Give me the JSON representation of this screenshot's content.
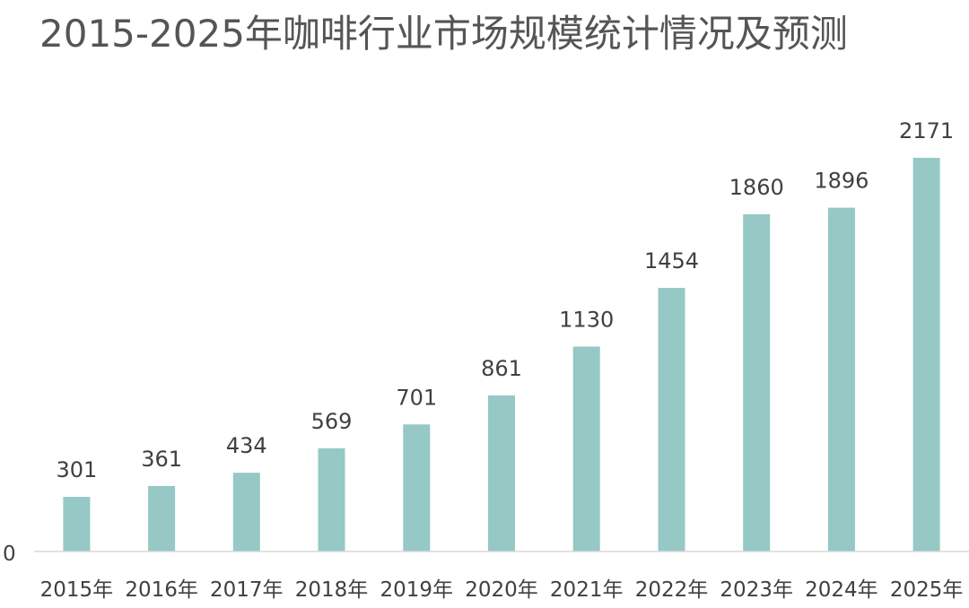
{
  "chart_data": {
    "type": "bar",
    "title": "2015-2025年咖啡行业市场规模统计情况及预测",
    "categories": [
      "2015年",
      "2016年",
      "2017年",
      "2018年",
      "2019年",
      "2020年",
      "2021年",
      "2022年",
      "2023年",
      "2024年",
      "2025年"
    ],
    "values": [
      301,
      361,
      434,
      569,
      701,
      861,
      1130,
      1454,
      1860,
      1896,
      2171
    ],
    "y_ticks": [
      "0"
    ],
    "ylim": [
      0,
      2171
    ],
    "grid": false,
    "legend": "none",
    "bar_color": "#96c8c5"
  }
}
